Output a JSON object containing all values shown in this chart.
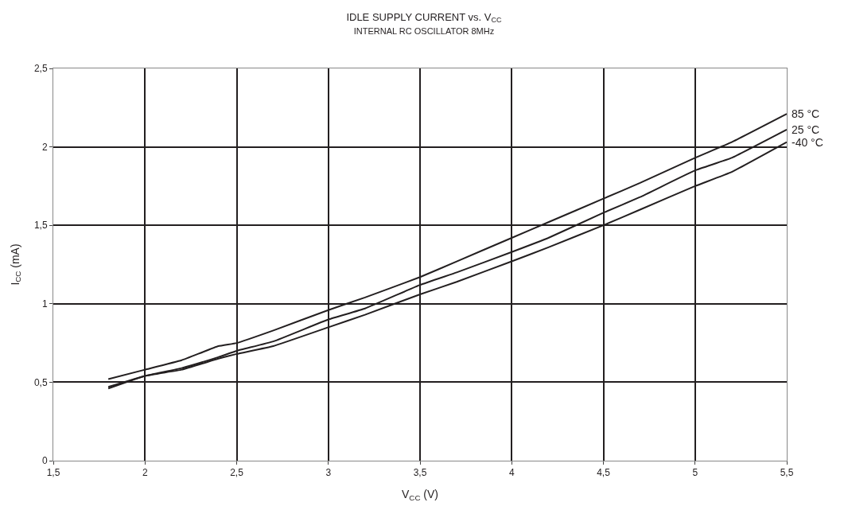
{
  "chart_data": {
    "type": "line",
    "title": "IDLE SUPPLY CURRENT vs. V$_{CC}$",
    "subtitle": "INTERNAL RC OSCILLATOR 8MHz",
    "xlabel": "V$_{CC}$ (V)",
    "ylabel": "I$_{CC}$ (mA)",
    "x": [
      1.8,
      2.0,
      2.2,
      2.4,
      2.5,
      2.7,
      3.0,
      3.2,
      3.5,
      3.7,
      4.0,
      4.2,
      4.5,
      4.7,
      5.0,
      5.2,
      5.5
    ],
    "series": [
      {
        "name": "85 °C",
        "color": "#231f20",
        "values": [
          0.52,
          0.58,
          0.64,
          0.73,
          0.75,
          0.83,
          0.96,
          1.04,
          1.17,
          1.27,
          1.42,
          1.52,
          1.67,
          1.77,
          1.93,
          2.03,
          2.21
        ]
      },
      {
        "name": "25 °C",
        "color": "#231f20",
        "values": [
          0.47,
          0.54,
          0.59,
          0.66,
          0.7,
          0.76,
          0.9,
          0.97,
          1.12,
          1.2,
          1.33,
          1.42,
          1.58,
          1.68,
          1.85,
          1.93,
          2.11
        ]
      },
      {
        "name": "-40 °C",
        "color": "#231f20",
        "values": [
          0.46,
          0.54,
          0.58,
          0.65,
          0.68,
          0.73,
          0.85,
          0.93,
          1.06,
          1.14,
          1.27,
          1.36,
          1.5,
          1.6,
          1.75,
          1.84,
          2.03
        ]
      }
    ],
    "xlim": [
      1.5,
      5.5
    ],
    "xticks": [
      {
        "value": 1.5,
        "label": "1,5"
      },
      2,
      {
        "value": 2.5,
        "label": "2,5"
      },
      3,
      {
        "value": 3.5,
        "label": "3,5"
      },
      4,
      {
        "value": 4.5,
        "label": "4,5"
      },
      5,
      {
        "value": 5.5,
        "label": "5,5"
      }
    ],
    "ylim": [
      0,
      2.5
    ],
    "yticks": [
      0,
      {
        "value": 0.5,
        "label": "0,5"
      },
      1,
      {
        "value": 1.5,
        "label": "1,5"
      },
      2,
      {
        "value": 2.5,
        "label": "2,5"
      }
    ],
    "grid": true,
    "legend": false,
    "marker": "none",
    "line_style": "solid"
  }
}
